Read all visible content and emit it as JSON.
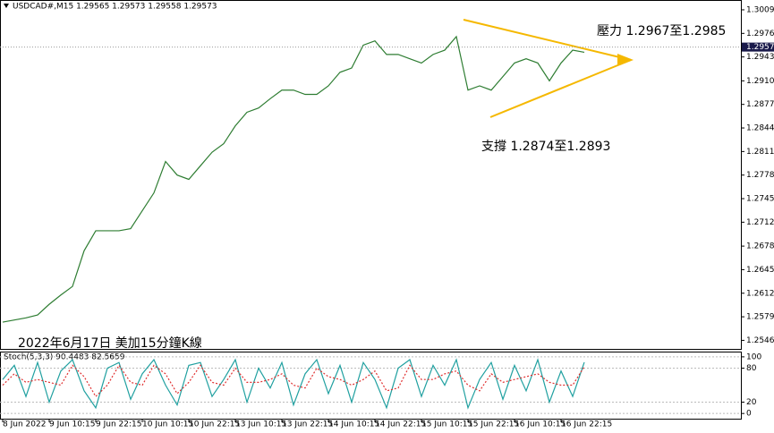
{
  "header": "USDCAD#,M15  1.29565 1.29573 1.29558 1.29573",
  "chart_data": [
    {
      "type": "line",
      "title": "2022年6月17日 美加15分鐘K線",
      "annotations": [
        "壓力 1.2967至1.2985",
        "支撐 1.2874至1.2893"
      ],
      "current_price": 1.29573,
      "categories": [
        "8 Jun 2022",
        null,
        null,
        null,
        "9 Jun 10:15",
        null,
        null,
        null,
        "9 Jun 22:15",
        null,
        null,
        null,
        "10 Jun 10:15",
        null,
        null,
        null,
        "10 Jun 22:15",
        null,
        null,
        null,
        "13 Jun 10:15",
        null,
        null,
        null,
        "13 Jun 22:15",
        null,
        null,
        null,
        "14 Jun 10:15",
        null,
        null,
        null,
        "14 Jun 22:15",
        null,
        null,
        null,
        "15 Jun 10:15",
        null,
        null,
        null,
        "15 Jun 22:15",
        null,
        null,
        null,
        "16 Jun 10:15",
        null,
        null,
        null,
        "16 Jun 22:15",
        null,
        null
      ],
      "series": [
        {
          "color": "#2e7d32",
          "values": [
            1.2572,
            1.2575,
            1.2578,
            1.2582,
            1.2597,
            1.261,
            1.2622,
            1.2672,
            1.27,
            1.27,
            1.27,
            1.2703,
            1.2728,
            1.2753,
            1.2797,
            1.2778,
            1.2772,
            1.2791,
            1.281,
            1.2822,
            1.2847,
            1.2866,
            1.2872,
            1.2885,
            1.2897,
            1.2897,
            1.2891,
            1.2891,
            1.2903,
            1.2922,
            1.2928,
            1.296,
            1.2966,
            1.2947,
            1.2947,
            1.2941,
            1.2935,
            1.2947,
            1.2953,
            1.2972,
            1.2897,
            1.2903,
            1.2897,
            1.2916,
            1.2935,
            1.2941,
            1.2935,
            1.291,
            1.2935,
            1.2953,
            1.295
          ]
        }
      ],
      "ylim": [
        1.25345,
        1.3022
      ],
      "yticks": [
        1.30095,
        1.29765,
        1.29435,
        {
          "value": 1.291,
          "label": "1.29100"
        },
        {
          "value": 1.2877,
          "label": "1.28770"
        },
        {
          "value": 1.2844,
          "label": "1.28440"
        },
        1.2811,
        {
          "value": 1.2778,
          "label": "1.27780"
        },
        {
          "value": 1.2745,
          "label": "1.27450"
        },
        {
          "value": 1.2712,
          "label": "1.27120"
        },
        1.26785,
        1.26455,
        1.26125,
        1.25795,
        1.25465
      ]
    },
    {
      "type": "line",
      "title": "Stoch(5,3,3) 90.4483 82.5659",
      "series": [
        {
          "color": "#20a0a0",
          "values": [
            60,
            85,
            30,
            90,
            20,
            75,
            95,
            40,
            10,
            80,
            90,
            25,
            70,
            95,
            50,
            15,
            85,
            90,
            30,
            60,
            95,
            20,
            80,
            45,
            90,
            15,
            70,
            95,
            35,
            85,
            20,
            90,
            60,
            10,
            80,
            95,
            30,
            85,
            50,
            95,
            10,
            60,
            90,
            25,
            85,
            40,
            95,
            20,
            75,
            30,
            90.4483
          ]
        },
        {
          "color": "#e03030",
          "dashed": true,
          "values": [
            50,
            70,
            55,
            60,
            55,
            50,
            85,
            65,
            30,
            50,
            85,
            55,
            50,
            85,
            70,
            35,
            55,
            85,
            55,
            50,
            80,
            55,
            55,
            60,
            70,
            50,
            45,
            80,
            65,
            60,
            50,
            60,
            75,
            40,
            45,
            85,
            60,
            60,
            70,
            75,
            50,
            40,
            70,
            55,
            60,
            65,
            70,
            55,
            50,
            50,
            82.5659
          ]
        }
      ],
      "ylim": [
        -9.2,
        107.7
      ],
      "yticks": [
        100,
        80,
        20,
        0
      ]
    }
  ]
}
